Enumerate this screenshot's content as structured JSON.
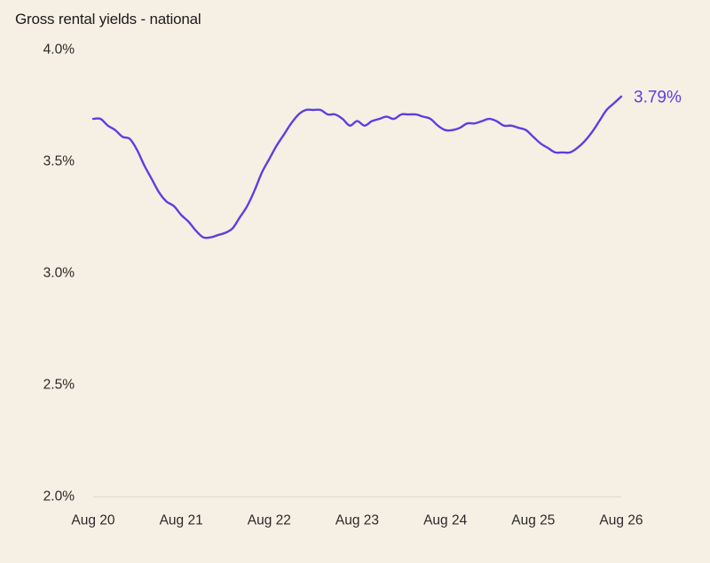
{
  "chart_data": {
    "type": "line",
    "title": "Gross rental yields - national",
    "xlabel": "",
    "ylabel": "",
    "x_ticks": [
      "Aug 20",
      "Aug 21",
      "Aug 22",
      "Aug 23",
      "Aug 24",
      "Aug 25",
      "Aug 26"
    ],
    "y_ticks": [
      "4.0%",
      "3.5%",
      "3.0%",
      "2.5%",
      "2.0%"
    ],
    "ylim": [
      2.0,
      4.0
    ],
    "xlim": [
      "2020-08",
      "2026-08"
    ],
    "grid": false,
    "line_color": "#5b3fe0",
    "end_label": "3.79%",
    "series": [
      {
        "x": [
          "2020-08",
          "2020-09",
          "2020-10",
          "2020-11",
          "2020-12",
          "2021-01",
          "2021-02",
          "2021-03",
          "2021-04",
          "2021-05",
          "2021-06",
          "2021-07",
          "2021-08",
          "2021-09",
          "2021-10",
          "2021-11",
          "2021-12",
          "2022-01",
          "2022-02",
          "2022-03",
          "2022-04",
          "2022-05",
          "2022-06",
          "2022-07",
          "2022-08",
          "2022-09",
          "2022-10",
          "2022-11",
          "2022-12",
          "2023-01",
          "2023-02",
          "2023-03",
          "2023-04",
          "2023-05",
          "2023-06",
          "2023-07",
          "2023-08",
          "2023-09",
          "2023-10",
          "2023-11",
          "2023-12",
          "2024-01",
          "2024-02",
          "2024-03",
          "2024-04",
          "2024-05",
          "2024-06",
          "2024-07",
          "2024-08",
          "2024-09",
          "2024-10",
          "2024-11",
          "2024-12",
          "2025-01",
          "2025-02",
          "2025-03",
          "2025-04",
          "2025-05",
          "2025-06",
          "2025-07",
          "2025-08",
          "2025-09",
          "2025-10",
          "2025-11",
          "2025-12",
          "2026-01",
          "2026-02",
          "2026-03",
          "2026-04",
          "2026-05",
          "2026-06",
          "2026-07",
          "2026-08"
        ],
        "y": [
          3.69,
          3.69,
          3.66,
          3.64,
          3.61,
          3.6,
          3.55,
          3.48,
          3.42,
          3.36,
          3.32,
          3.3,
          3.26,
          3.23,
          3.19,
          3.16,
          3.16,
          3.17,
          3.18,
          3.2,
          3.25,
          3.3,
          3.37,
          3.45,
          3.51,
          3.57,
          3.62,
          3.67,
          3.71,
          3.73,
          3.73,
          3.73,
          3.71,
          3.71,
          3.69,
          3.66,
          3.68,
          3.66,
          3.68,
          3.69,
          3.7,
          3.69,
          3.71,
          3.71,
          3.71,
          3.7,
          3.69,
          3.66,
          3.64,
          3.64,
          3.65,
          3.67,
          3.67,
          3.68,
          3.69,
          3.68,
          3.66,
          3.66,
          3.65,
          3.64,
          3.61,
          3.58,
          3.56,
          3.54,
          3.54,
          3.54,
          3.56,
          3.59,
          3.63,
          3.68,
          3.73,
          3.76,
          3.79
        ]
      }
    ]
  }
}
